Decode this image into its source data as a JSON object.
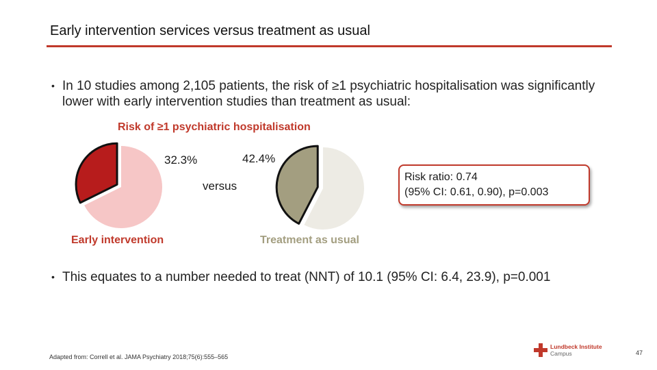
{
  "slide": {
    "title": "Early intervention services versus treatment as usual",
    "bullet1": "In 10 studies among 2,105 patients, the risk of ≥1 psychiatric hospitalisation was significantly lower with early intervention studies than treatment as usual:",
    "bullet2": "This equates to a number needed to treat (NNT) of 10.1 (95% CI: 6.4, 23.9), p=0.001",
    "bullet_symbol": "•",
    "source": "Adapted from: Correll et al. JAMA Psychiatry 2018;75(6):555–565",
    "page_number": "47",
    "logo": {
      "line1": "Lundbeck Institute",
      "line2": "Campus"
    },
    "colors": {
      "accent": "#c0392b",
      "ei_slice": "#b71c1c",
      "ei_rest": "#f6c6c6",
      "tau_slice": "#a39e80",
      "tau_rest": "#edebe4"
    }
  },
  "chart_data": {
    "type": "pie",
    "title": "Risk of ≥1 psychiatric hospitalisation",
    "versus_label": "versus",
    "pies": [
      {
        "name": "Early intervention",
        "value": 32.3,
        "label": "32.3%"
      },
      {
        "name": "Treatment as usual",
        "value": 42.4,
        "label": "42.4%"
      }
    ],
    "risk_ratio": {
      "line1": "Risk ratio: 0.74",
      "line2": "(95% CI: 0.61, 0.90), p=0.003"
    }
  }
}
